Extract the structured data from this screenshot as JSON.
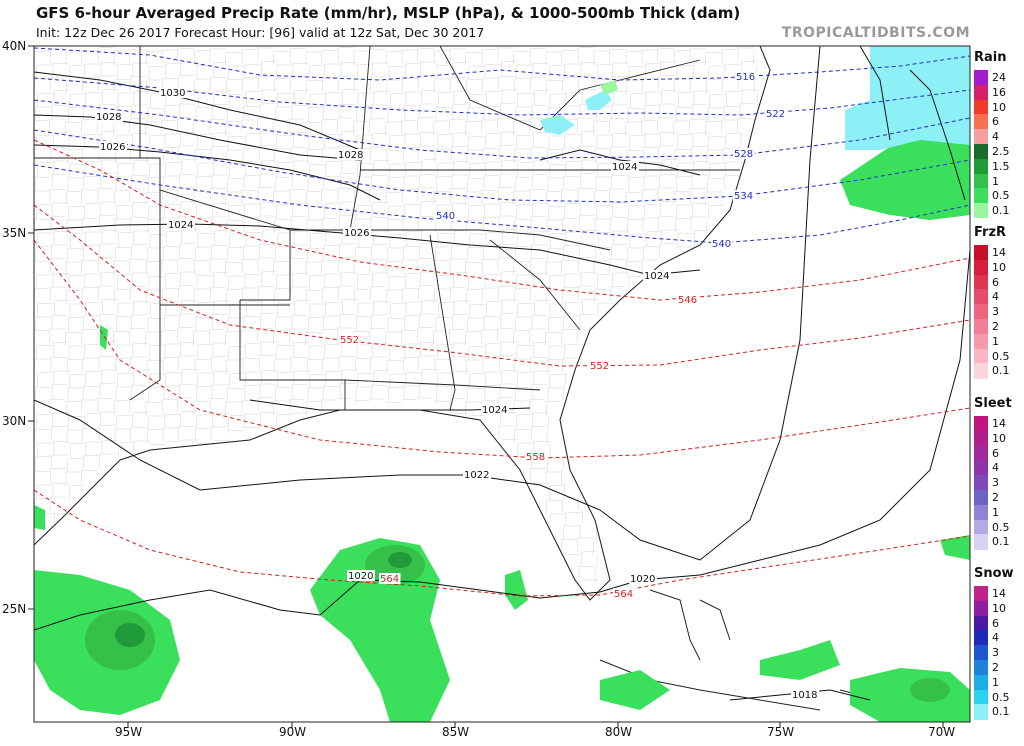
{
  "header": {
    "title": "GFS 6-hour Averaged Precip Rate (mm/hr), MSLP (hPa), & 1000-500mb Thick (dam)",
    "subtitle": "Init: 12z Dec 26 2017   Forecast Hour: [96]   valid at 12z Sat, Dec 30 2017",
    "brand": "TROPICALTIDBITS.COM"
  },
  "axes": {
    "lat_labels": [
      "40N",
      "35N",
      "30N",
      "25N"
    ],
    "lon_labels": [
      "95W",
      "90W",
      "85W",
      "80W",
      "75W",
      "70W"
    ]
  },
  "isobars": [
    "1030",
    "1028",
    "1026",
    "1028",
    "1024",
    "1026",
    "1024",
    "1024",
    "1024",
    "1022",
    "1020",
    "1020",
    "1018"
  ],
  "thickness": {
    "blue": [
      "516",
      "522",
      "528",
      "534",
      "540",
      "540"
    ],
    "red": [
      "546",
      "552",
      "552",
      "558",
      "564",
      "564"
    ]
  },
  "legend": {
    "rain": {
      "title": "Rain",
      "labels": [
        "24",
        "16",
        "10",
        "6",
        "4",
        "2.5",
        "1.5",
        "1",
        "0.5",
        "0.1"
      ],
      "colors": [
        "#a21bd0",
        "#d8206a",
        "#f23a2a",
        "#f87050",
        "#f6a0a0",
        "#196c2a",
        "#1e9a38",
        "#35c04a",
        "#3ae05c",
        "#9cf59f"
      ]
    },
    "frzr": {
      "title": "FrzR",
      "labels": [
        "14",
        "10",
        "6",
        "4",
        "3",
        "2",
        "1",
        "0.5",
        "0.1"
      ],
      "colors": [
        "#c80f28",
        "#d51f3d",
        "#df3551",
        "#e64c67",
        "#ed657e",
        "#f27f94",
        "#f69aab",
        "#fab6c3",
        "#fcd6dc"
      ]
    },
    "sleet": {
      "title": "Sleet",
      "labels": [
        "14",
        "10",
        "6",
        "4",
        "3",
        "2",
        "1",
        "0.5",
        "0.1"
      ],
      "colors": [
        "#c0157c",
        "#b01d8c",
        "#9f2a9c",
        "#8c36aa",
        "#7d4ab8",
        "#6e62c4",
        "#8f83d3",
        "#b4a9e2",
        "#d8d1f0"
      ]
    },
    "snow": {
      "title": "Snow",
      "labels": [
        "14",
        "10",
        "6",
        "4",
        "3",
        "2",
        "1",
        "0.5",
        "0.1"
      ],
      "colors": [
        "#c3218a",
        "#8f1fa1",
        "#4a1aa6",
        "#1c2bb8",
        "#1e56cf",
        "#1e82dd",
        "#1eaee6",
        "#28d3ee",
        "#8ef0f7"
      ]
    }
  }
}
